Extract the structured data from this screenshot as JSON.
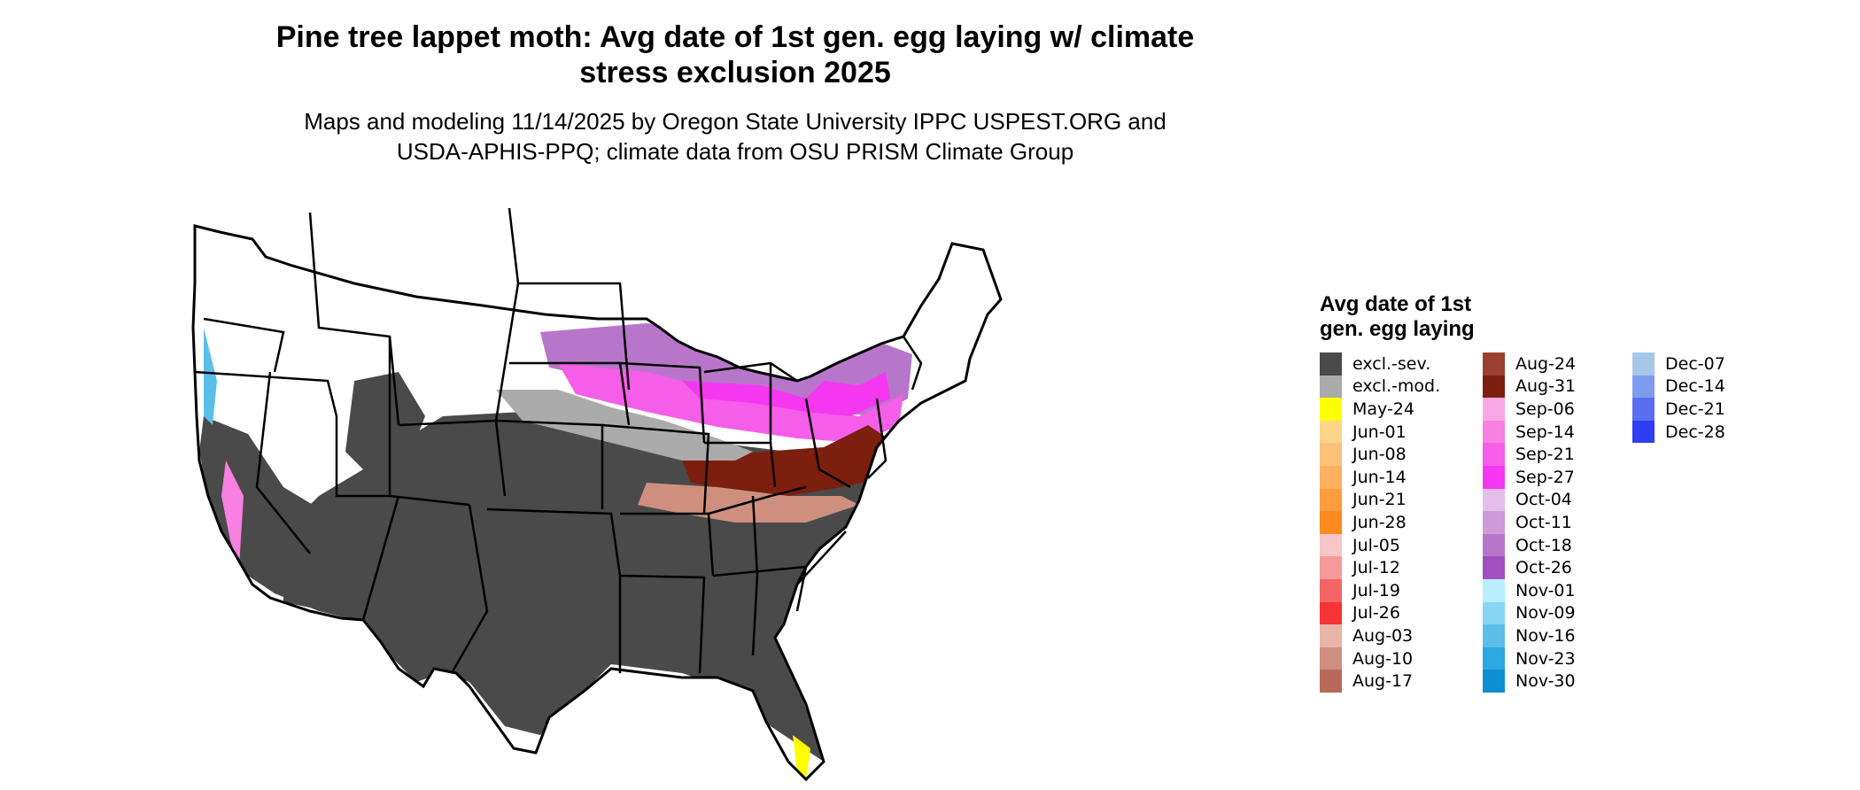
{
  "header": {
    "title_line1": "Pine tree lappet moth: Avg date of 1st gen. egg laying w/ climate",
    "title_line2": "stress exclusion 2025",
    "subtitle_line1": "Maps and modeling 11/14/2025 by Oregon State University IPPC USPEST.ORG and",
    "subtitle_line2": "USDA-APHIS-PPQ; climate data from OSU PRISM Climate Group"
  },
  "legend": {
    "title_line1": "Avg date of 1st",
    "title_line2": "gen. egg laying",
    "columns": [
      [
        {
          "label": "excl.-sev.",
          "color": "#4a4a4a"
        },
        {
          "label": "excl.-mod.",
          "color": "#ababab"
        },
        {
          "label": "May-24",
          "color": "#ffff00"
        },
        {
          "label": "Jun-01",
          "color": "#fdd58a"
        },
        {
          "label": "Jun-08",
          "color": "#fdc278"
        },
        {
          "label": "Jun-14",
          "color": "#fdb060"
        },
        {
          "label": "Jun-21",
          "color": "#fd9c40"
        },
        {
          "label": "Jun-28",
          "color": "#fd8a1e"
        },
        {
          "label": "Jul-05",
          "color": "#f7c6c6"
        },
        {
          "label": "Jul-12",
          "color": "#f59a9a"
        },
        {
          "label": "Jul-19",
          "color": "#f56565"
        },
        {
          "label": "Jul-26",
          "color": "#f53535"
        },
        {
          "label": "Aug-03",
          "color": "#e8b5a8"
        },
        {
          "label": "Aug-10",
          "color": "#cf8f7f"
        },
        {
          "label": "Aug-17",
          "color": "#b8695a"
        }
      ],
      [
        {
          "label": "Aug-24",
          "color": "#9a4030"
        },
        {
          "label": "Aug-31",
          "color": "#7c1f0f"
        },
        {
          "label": "Sep-06",
          "color": "#f9a8e6"
        },
        {
          "label": "Sep-14",
          "color": "#f780e0"
        },
        {
          "label": "Sep-21",
          "color": "#f55ee8"
        },
        {
          "label": "Sep-27",
          "color": "#f637f2"
        },
        {
          "label": "Oct-04",
          "color": "#e3bee8"
        },
        {
          "label": "Oct-11",
          "color": "#cf9ad8"
        },
        {
          "label": "Oct-18",
          "color": "#b876cb"
        },
        {
          "label": "Oct-26",
          "color": "#a14fbd"
        },
        {
          "label": "Nov-01",
          "color": "#b9eefc"
        },
        {
          "label": "Nov-09",
          "color": "#86d5f2"
        },
        {
          "label": "Nov-16",
          "color": "#5bbfe8"
        },
        {
          "label": "Nov-23",
          "color": "#2aa8df"
        },
        {
          "label": "Nov-30",
          "color": "#0b8fd2"
        }
      ],
      [
        {
          "label": "Dec-07",
          "color": "#a6c8e8"
        },
        {
          "label": "Dec-14",
          "color": "#7e9cee"
        },
        {
          "label": "Dec-21",
          "color": "#5a6ff0"
        },
        {
          "label": "Dec-28",
          "color": "#2e3ff3"
        }
      ]
    ]
  }
}
